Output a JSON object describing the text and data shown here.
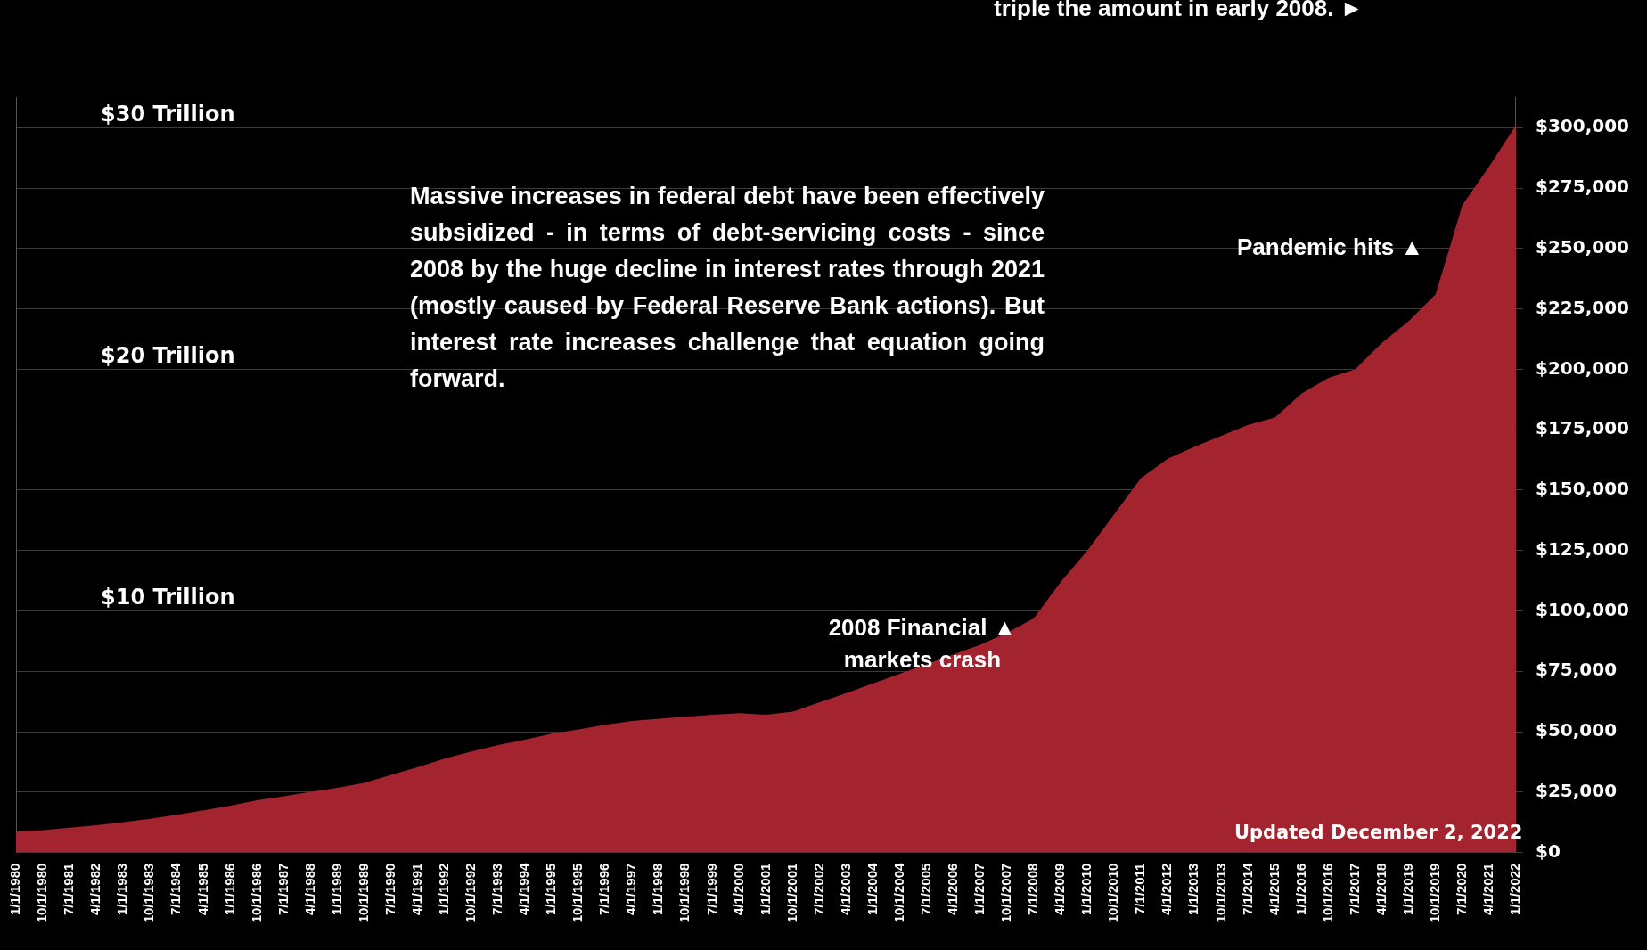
{
  "chart_data": {
    "type": "area",
    "categories": [
      "1/1/1980",
      "10/1/1980",
      "7/1/1981",
      "4/1/1982",
      "1/1/1983",
      "10/1/1983",
      "7/1/1984",
      "4/1/1985",
      "1/1/1986",
      "10/1/1986",
      "7/1/1987",
      "4/1/1988",
      "1/1/1989",
      "10/1/1989",
      "7/1/1990",
      "4/1/1991",
      "1/1/1992",
      "10/1/1992",
      "7/1/1993",
      "4/1/1994",
      "1/1/1995",
      "10/1/1995",
      "7/1/1996",
      "4/1/1997",
      "1/1/1998",
      "10/1/1998",
      "7/1/1999",
      "4/1/2000",
      "1/1/2001",
      "10/1/2001",
      "7/1/2002",
      "4/1/2003",
      "1/1/2004",
      "10/1/2004",
      "7/1/2005",
      "4/1/2006",
      "1/1/2007",
      "10/1/2007",
      "7/1/2008",
      "4/1/2009",
      "1/1/2010",
      "10/1/2010",
      "7/1/2011",
      "4/1/2012",
      "1/1/2013",
      "10/1/2013",
      "7/1/2014",
      "4/1/2015",
      "1/1/2016",
      "10/1/2016",
      "7/1/2017",
      "4/1/2018",
      "1/1/2019",
      "10/1/2019",
      "7/1/2020",
      "4/1/2021",
      "1/1/2022"
    ],
    "series": [
      {
        "color": "#a3242e",
        "values": [
          8700,
          9300,
          10300,
          11300,
          12600,
          14000,
          15600,
          17500,
          19400,
          21600,
          23300,
          25100,
          26800,
          28800,
          32100,
          35400,
          38900,
          41800,
          44500,
          46700,
          49200,
          50900,
          52900,
          54400,
          55400,
          56200,
          57000,
          57700,
          57000,
          58300,
          62200,
          66000,
          70000,
          74000,
          78000,
          82000,
          86000,
          91000,
          97000,
          112000,
          125000,
          140000,
          155000,
          163000,
          168000,
          172500,
          177000,
          180000,
          190000,
          196500,
          200000,
          211000,
          220000,
          231000,
          268000,
          284000,
          301000
        ]
      }
    ],
    "ylim": [
      0,
      312500
    ],
    "yticks": [
      {
        "value": 0,
        "label": "$0"
      },
      {
        "value": 25000,
        "label": "$25,000"
      },
      {
        "value": 50000,
        "label": "$50,000"
      },
      {
        "value": 75000,
        "label": "$75,000"
      },
      {
        "value": 100000,
        "label": "$100,000"
      },
      {
        "value": 125000,
        "label": "$125,000"
      },
      {
        "value": 150000,
        "label": "$150,000"
      },
      {
        "value": 175000,
        "label": "$175,000"
      },
      {
        "value": 200000,
        "label": "$200,000"
      },
      {
        "value": 225000,
        "label": "$225,000"
      },
      {
        "value": 250000,
        "label": "$250,000"
      },
      {
        "value": 275000,
        "label": "$275,000"
      },
      {
        "value": 300000,
        "label": "$300,000"
      }
    ],
    "y2lim": [
      0,
      31.25
    ],
    "y2ticks": [
      {
        "value": 10,
        "label": "$10 Trillion"
      },
      {
        "value": 20,
        "label": "$20 Trillion"
      },
      {
        "value": 30,
        "label": "$30 Trillion"
      }
    ],
    "grid": "y",
    "legend": false,
    "annotations": [
      "triple the amount in early 2008. ►",
      "Massive increases in federal debt have been effectively subsidized  - in terms of debt-servicing costs - since 2008 by the huge decline in interest rates through 2021 (mostly caused by Federal Reserve Bank actions). But interest rate increases challenge that equation going forward.",
      "2008 Financial ▲\nmarkets crash",
      "Pandemic hits ▲",
      "Updated December 2, 2022"
    ]
  }
}
